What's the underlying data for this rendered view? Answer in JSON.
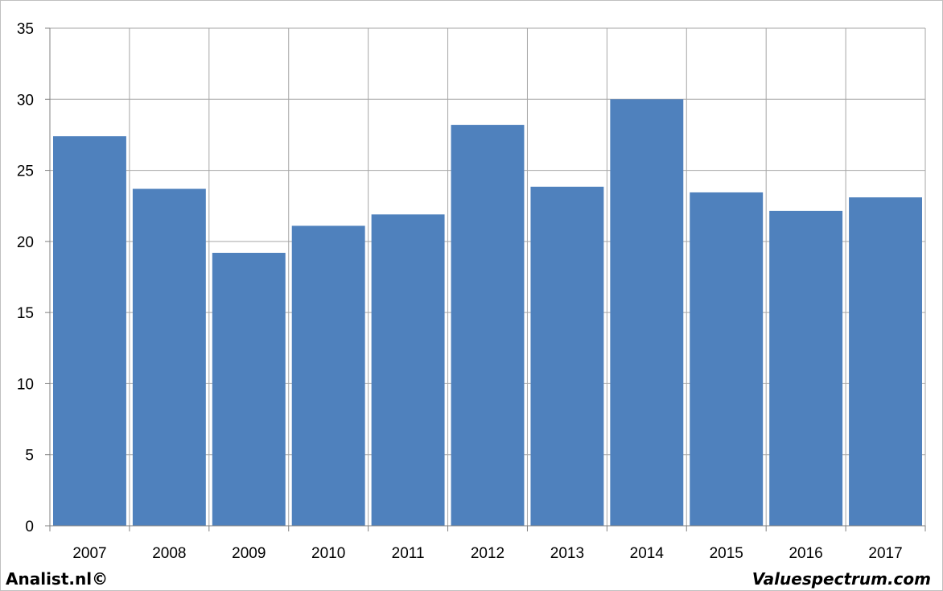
{
  "chart_data": {
    "type": "bar",
    "categories": [
      "2007",
      "2008",
      "2009",
      "2010",
      "2011",
      "2012",
      "2013",
      "2014",
      "2015",
      "2016",
      "2017"
    ],
    "values": [
      27.4,
      23.7,
      19.2,
      21.1,
      21.9,
      28.2,
      23.85,
      30.0,
      23.45,
      22.15,
      23.1
    ],
    "ylim": [
      0,
      35
    ],
    "yticks": [
      "0",
      "5",
      "10",
      "15",
      "20",
      "25",
      "30",
      "35"
    ],
    "grid": true,
    "legend": "none"
  },
  "colors": {
    "bar": "#4f81bd",
    "grid": "#a6a6a6",
    "axis": "#808080"
  },
  "footer": {
    "left": "Analist.nl©",
    "right": "Valuespectrum.com"
  }
}
